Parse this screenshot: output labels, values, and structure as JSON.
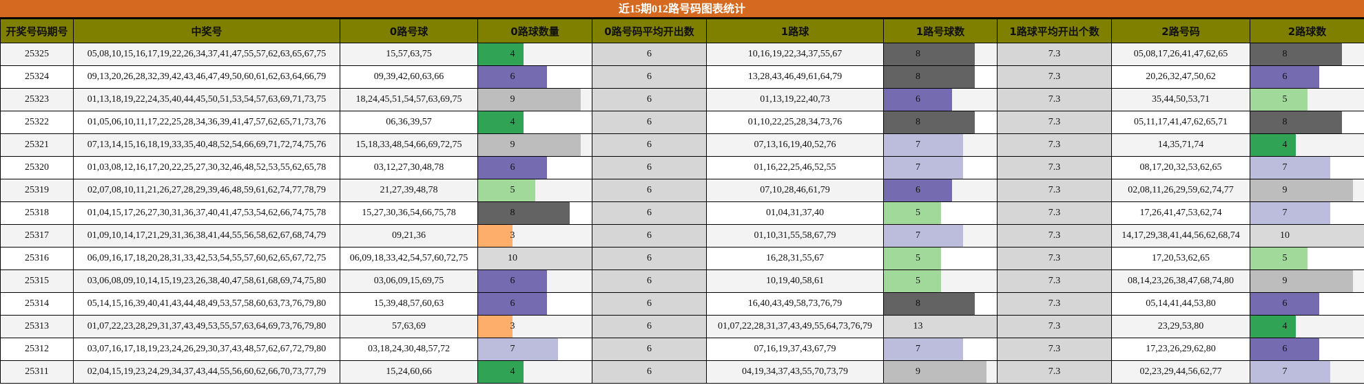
{
  "title": "近15期012路号码图表统计",
  "columns": [
    "开奖号码期号",
    "中奖号",
    "0路号球",
    "0路球数量",
    "0路号码平均开出数",
    "1路球",
    "1路号球数",
    "1路球平均开出个数",
    "2路号码",
    "2路球数"
  ],
  "colors": {
    "title_bg": "#d5691f",
    "header_bg": "#7f7f00",
    "avg_bg": "#d6d6d6",
    "count_colors": {
      "3": "#fdae6b",
      "4": "#31a354",
      "5": "#a1d99b",
      "6": "#756bb1",
      "7": "#bcbddc",
      "8": "#636363",
      "9": "#bdbdbd",
      "10": "#d9d9d9",
      "13": "#d9d9d9"
    }
  },
  "rows": [
    {
      "issue": "25325",
      "winning": "05,08,10,15,16,17,19,22,26,34,37,41,47,55,57,62,63,65,67,75",
      "r0": "15,57,63,75",
      "r0_count": 4,
      "r0_avg": "6",
      "r1": "10,16,19,22,34,37,55,67",
      "r1_count": 8,
      "r1_avg": "7.3",
      "r2": "05,08,17,26,41,47,62,65",
      "r2_count": 8
    },
    {
      "issue": "25324",
      "winning": "09,13,20,26,28,32,39,42,43,46,47,49,50,60,61,62,63,64,66,79",
      "r0": "09,39,42,60,63,66",
      "r0_count": 6,
      "r0_avg": "6",
      "r1": "13,28,43,46,49,61,64,79",
      "r1_count": 8,
      "r1_avg": "7.3",
      "r2": "20,26,32,47,50,62",
      "r2_count": 6
    },
    {
      "issue": "25323",
      "winning": "01,13,18,19,22,24,35,40,44,45,50,51,53,54,57,63,69,71,73,75",
      "r0": "18,24,45,51,54,57,63,69,75",
      "r0_count": 9,
      "r0_avg": "6",
      "r1": "01,13,19,22,40,73",
      "r1_count": 6,
      "r1_avg": "7.3",
      "r2": "35,44,50,53,71",
      "r2_count": 5
    },
    {
      "issue": "25322",
      "winning": "01,05,06,10,11,17,22,25,28,34,36,39,41,47,57,62,65,71,73,76",
      "r0": "06,36,39,57",
      "r0_count": 4,
      "r0_avg": "6",
      "r1": "01,10,22,25,28,34,73,76",
      "r1_count": 8,
      "r1_avg": "7.3",
      "r2": "05,11,17,41,47,62,65,71",
      "r2_count": 8
    },
    {
      "issue": "25321",
      "winning": "07,13,14,15,16,18,19,33,35,40,48,52,54,66,69,71,72,74,75,76",
      "r0": "15,18,33,48,54,66,69,72,75",
      "r0_count": 9,
      "r0_avg": "6",
      "r1": "07,13,16,19,40,52,76",
      "r1_count": 7,
      "r1_avg": "7.3",
      "r2": "14,35,71,74",
      "r2_count": 4
    },
    {
      "issue": "25320",
      "winning": "01,03,08,12,16,17,20,22,25,27,30,32,46,48,52,53,55,62,65,78",
      "r0": "03,12,27,30,48,78",
      "r0_count": 6,
      "r0_avg": "6",
      "r1": "01,16,22,25,46,52,55",
      "r1_count": 7,
      "r1_avg": "7.3",
      "r2": "08,17,20,32,53,62,65",
      "r2_count": 7
    },
    {
      "issue": "25319",
      "winning": "02,07,08,10,11,21,26,27,28,29,39,46,48,59,61,62,74,77,78,79",
      "r0": "21,27,39,48,78",
      "r0_count": 5,
      "r0_avg": "6",
      "r1": "07,10,28,46,61,79",
      "r1_count": 6,
      "r1_avg": "7.3",
      "r2": "02,08,11,26,29,59,62,74,77",
      "r2_count": 9
    },
    {
      "issue": "25318",
      "winning": "01,04,15,17,26,27,30,31,36,37,40,41,47,53,54,62,66,74,75,78",
      "r0": "15,27,30,36,54,66,75,78",
      "r0_count": 8,
      "r0_avg": "6",
      "r1": "01,04,31,37,40",
      "r1_count": 5,
      "r1_avg": "7.3",
      "r2": "17,26,41,47,53,62,74",
      "r2_count": 7
    },
    {
      "issue": "25317",
      "winning": "01,09,10,14,17,21,29,31,36,38,41,44,55,56,58,62,67,68,74,79",
      "r0": "09,21,36",
      "r0_count": 3,
      "r0_avg": "6",
      "r1": "01,10,31,55,58,67,79",
      "r1_count": 7,
      "r1_avg": "7.3",
      "r2": "14,17,29,38,41,44,56,62,68,74",
      "r2_count": 10
    },
    {
      "issue": "25316",
      "winning": "06,09,16,17,18,20,28,31,33,42,53,54,55,57,60,62,65,67,72,75",
      "r0": "06,09,18,33,42,54,57,60,72,75",
      "r0_count": 10,
      "r0_avg": "6",
      "r1": "16,28,31,55,67",
      "r1_count": 5,
      "r1_avg": "7.3",
      "r2": "17,20,53,62,65",
      "r2_count": 5
    },
    {
      "issue": "25315",
      "winning": "03,06,08,09,10,14,15,19,23,26,38,40,47,58,61,68,69,74,75,80",
      "r0": "03,06,09,15,69,75",
      "r0_count": 6,
      "r0_avg": "6",
      "r1": "10,19,40,58,61",
      "r1_count": 5,
      "r1_avg": "7.3",
      "r2": "08,14,23,26,38,47,68,74,80",
      "r2_count": 9
    },
    {
      "issue": "25314",
      "winning": "05,14,15,16,39,40,41,43,44,48,49,53,57,58,60,63,73,76,79,80",
      "r0": "15,39,48,57,60,63",
      "r0_count": 6,
      "r0_avg": "6",
      "r1": "16,40,43,49,58,73,76,79",
      "r1_count": 8,
      "r1_avg": "7.3",
      "r2": "05,14,41,44,53,80",
      "r2_count": 6
    },
    {
      "issue": "25313",
      "winning": "01,07,22,23,28,29,31,37,43,49,53,55,57,63,64,69,73,76,79,80",
      "r0": "57,63,69",
      "r0_count": 3,
      "r0_avg": "6",
      "r1": "01,07,22,28,31,37,43,49,55,64,73,76,79",
      "r1_count": 13,
      "r1_avg": "7.3",
      "r2": "23,29,53,80",
      "r2_count": 4
    },
    {
      "issue": "25312",
      "winning": "03,07,16,17,18,19,23,24,26,29,30,37,43,48,57,62,67,72,79,80",
      "r0": "03,18,24,30,48,57,72",
      "r0_count": 7,
      "r0_avg": "6",
      "r1": "07,16,19,37,43,67,79",
      "r1_count": 7,
      "r1_avg": "7.3",
      "r2": "17,23,26,29,62,80",
      "r2_count": 6
    },
    {
      "issue": "25311",
      "winning": "02,04,15,19,23,24,29,34,37,43,44,55,56,60,62,66,70,73,77,79",
      "r0": "15,24,60,66",
      "r0_count": 4,
      "r0_avg": "6",
      "r1": "04,19,34,37,43,55,70,73,79",
      "r1_count": 9,
      "r1_avg": "7.3",
      "r2": "02,23,29,44,56,62,77",
      "r2_count": 7
    }
  ],
  "chart_data": {
    "type": "table",
    "title": "近15期012路号码图表统计",
    "categories": [
      "25325",
      "25324",
      "25323",
      "25322",
      "25321",
      "25320",
      "25319",
      "25318",
      "25317",
      "25316",
      "25315",
      "25314",
      "25313",
      "25312",
      "25311"
    ],
    "series": [
      {
        "name": "0路球数量",
        "values": [
          4,
          6,
          9,
          4,
          9,
          6,
          5,
          8,
          3,
          10,
          6,
          6,
          3,
          7,
          4
        ]
      },
      {
        "name": "1路号球数",
        "values": [
          8,
          8,
          6,
          8,
          7,
          7,
          6,
          5,
          7,
          5,
          5,
          8,
          13,
          7,
          9
        ]
      },
      {
        "name": "2路球数",
        "values": [
          8,
          6,
          5,
          8,
          4,
          7,
          9,
          7,
          10,
          5,
          9,
          6,
          4,
          6,
          7
        ]
      }
    ],
    "averages": {
      "0路号码平均开出数": 6,
      "1路球平均开出个数": 7.3
    },
    "bar_scale_max": 10
  }
}
